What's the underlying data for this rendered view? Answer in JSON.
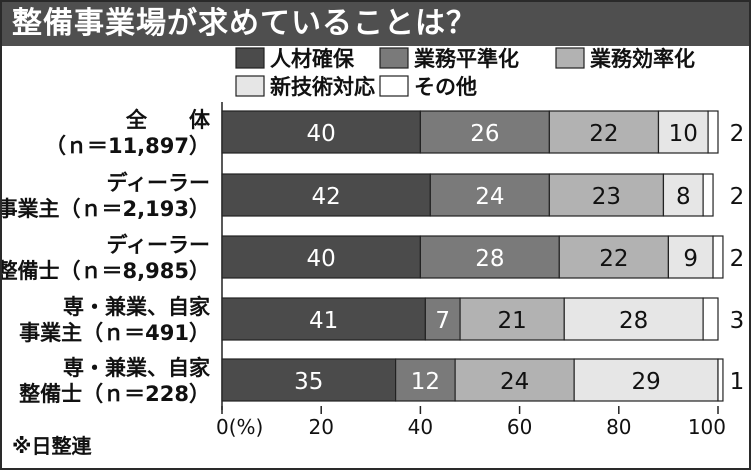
{
  "header": {
    "title": "整備事業場が求めていることは？"
  },
  "source_note": "※日整連",
  "colors": {
    "title_bar": "#4f4f4f",
    "series": [
      "#4b4b4b",
      "#7a7a7a",
      "#b2b2b2",
      "#e6e6e6",
      "#ffffff"
    ],
    "value_text_dark_series": [
      "#ffffff",
      "#ffffff",
      "#111111",
      "#111111",
      "#111111"
    ]
  },
  "chart_data": {
    "type": "bar",
    "orientation": "horizontal",
    "stacked": true,
    "categories": [
      [
        "全　　体",
        "（ｎ＝11,897）"
      ],
      [
        "ディーラー",
        "事業主（ｎ＝2,193）"
      ],
      [
        "ディーラー",
        "整備士（ｎ＝8,985）"
      ],
      [
        "専・兼業、自家",
        "事業主（ｎ＝491）"
      ],
      [
        "専・兼業、自家",
        "整備士（ｎ＝228）"
      ]
    ],
    "series": [
      {
        "name": "人材確保",
        "values": [
          40,
          42,
          40,
          41,
          35
        ]
      },
      {
        "name": "業務平準化",
        "values": [
          26,
          24,
          28,
          7,
          12
        ]
      },
      {
        "name": "業務効率化",
        "values": [
          22,
          23,
          22,
          21,
          24
        ]
      },
      {
        "name": "新技術対応",
        "values": [
          10,
          8,
          9,
          28,
          29
        ]
      },
      {
        "name": "その他",
        "values": [
          2,
          2,
          2,
          3,
          1
        ]
      }
    ],
    "xlim": [
      0,
      100
    ],
    "x_ticks": [
      "0(%)",
      "20",
      "40",
      "60",
      "80",
      "100"
    ],
    "x_tick_values": [
      0,
      20,
      40,
      60,
      80,
      100
    ],
    "legend": "top",
    "grid": false
  }
}
